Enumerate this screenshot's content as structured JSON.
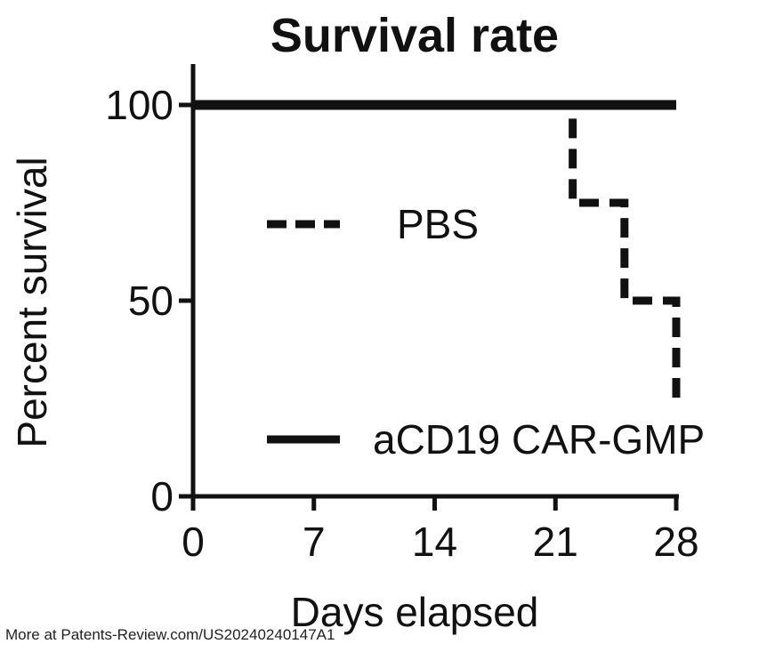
{
  "chart_data": {
    "type": "line",
    "title": "Survival rate",
    "xlabel": "Days elapsed",
    "ylabel": "Percent survival",
    "xlim": [
      0,
      28
    ],
    "ylim": [
      0,
      100
    ],
    "x_ticks": [
      "0",
      "7",
      "14",
      "21",
      "28"
    ],
    "y_ticks": [
      "0",
      "50",
      "100"
    ],
    "series": [
      {
        "name": "PBS",
        "style": "dashed",
        "color": "#111111",
        "x": [
          0,
          22,
          22,
          25,
          25,
          28,
          28
        ],
        "y": [
          100,
          100,
          75,
          75,
          50,
          50,
          25
        ]
      },
      {
        "name": "aCD19 CAR-GMP",
        "style": "solid",
        "color": "#111111",
        "x": [
          0,
          28
        ],
        "y": [
          100,
          100
        ]
      }
    ],
    "legend": "inside-plot"
  },
  "footer": "More at Patents-Review.com/US20240240147A1"
}
